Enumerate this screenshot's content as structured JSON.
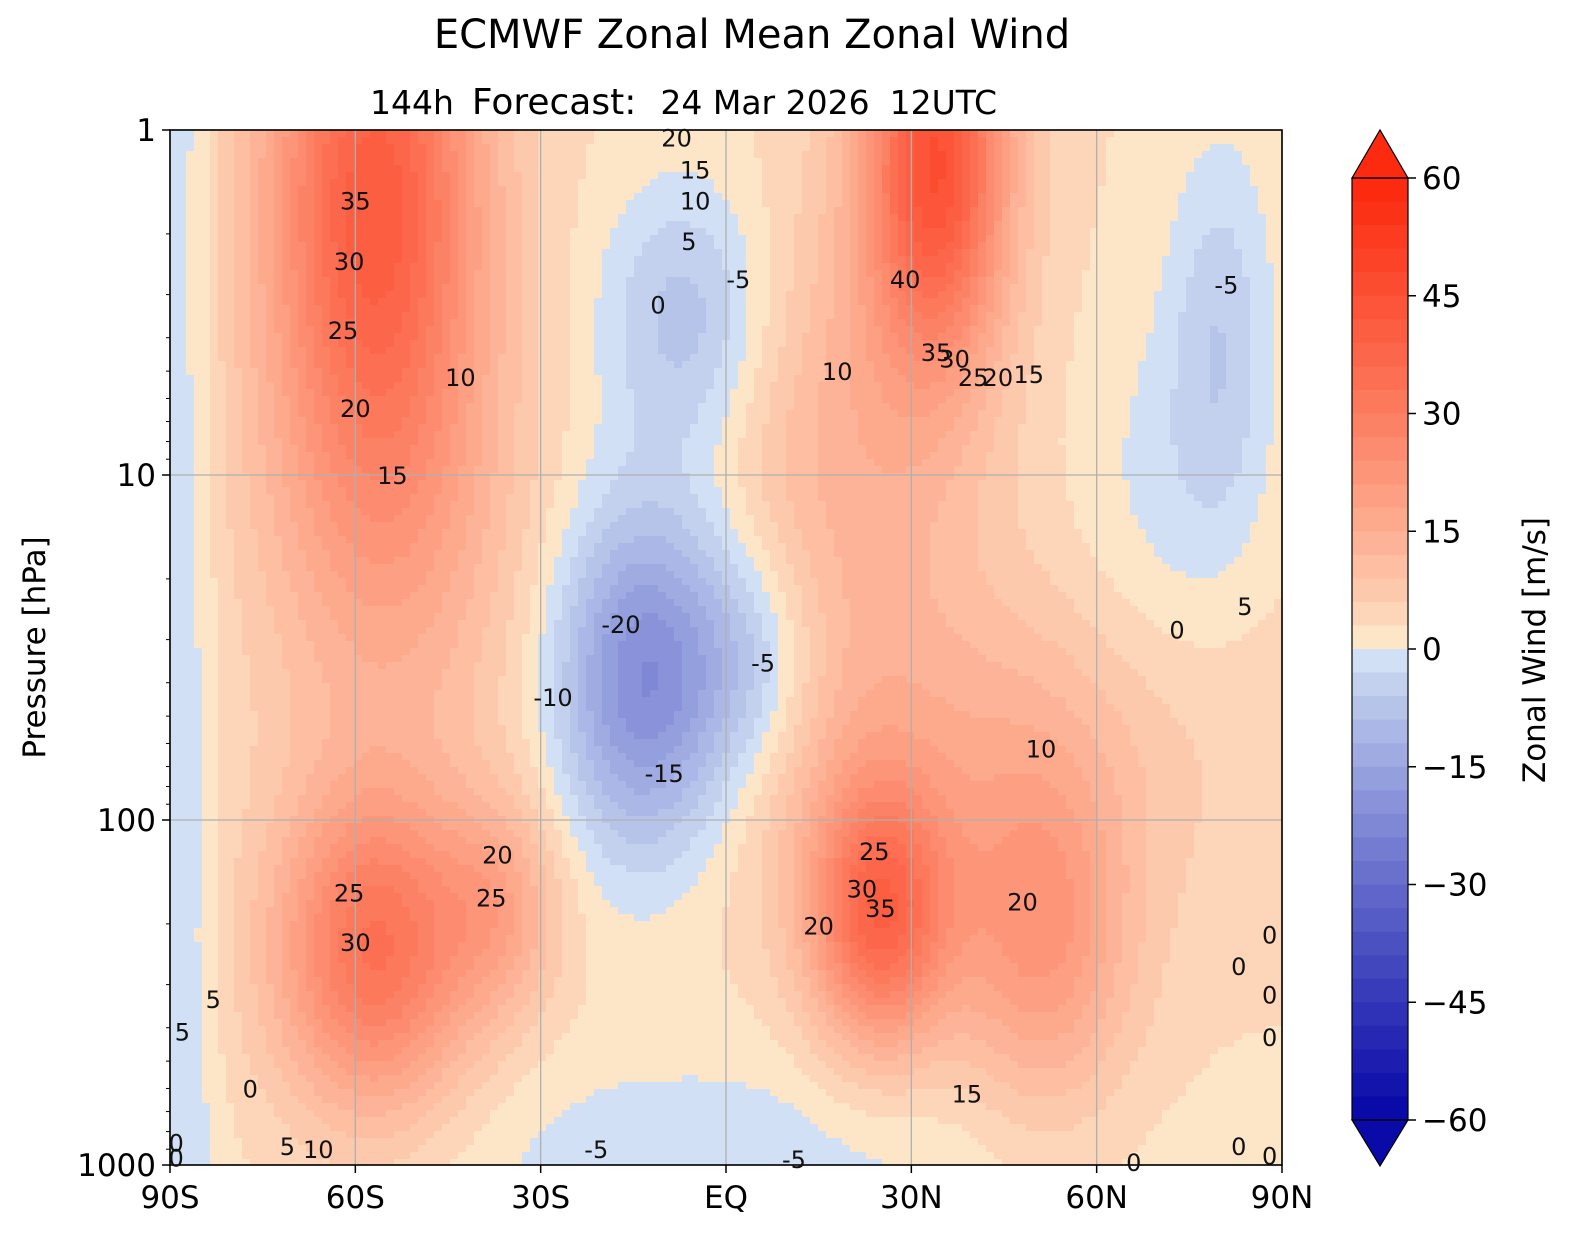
{
  "chart_data": {
    "type": "heatmap",
    "title": "ECMWF Zonal Mean Zonal Wind",
    "subtitle": {
      "lead": "144h",
      "label": "Forecast:",
      "date": "24 Mar 2026",
      "time": "12UTC"
    },
    "xlabel": "",
    "ylabel": "Pressure [hPa]",
    "x_ticks": [
      "90S",
      "60S",
      "30S",
      "EQ",
      "30N",
      "60N",
      "90N"
    ],
    "x_tick_values": [
      -90,
      -60,
      -30,
      0,
      30,
      60,
      90
    ],
    "xlim": [
      -90,
      90
    ],
    "y_ticks": [
      "1",
      "10",
      "100",
      "1000"
    ],
    "y_tick_values": [
      1,
      10,
      100,
      1000
    ],
    "ylim": [
      1000,
      1
    ],
    "y_scale": "log",
    "grid": true,
    "colorbar": {
      "label": "Zonal Wind [m/s]",
      "ticks": [
        "60",
        "45",
        "30",
        "15",
        "0",
        "−15",
        "−30",
        "−45",
        "−60"
      ],
      "tick_values": [
        60,
        45,
        30,
        15,
        0,
        -15,
        -30,
        -45,
        -60
      ],
      "range": [
        -60,
        60
      ],
      "step": 3,
      "extend": "both",
      "low_color": "#0a0aa8",
      "mid_low_color": "#e2f2fb",
      "mid_high_color": "#fde5c8",
      "high_color": "#fc2a0e"
    },
    "wind_maxima": [
      {
        "lat": -57,
        "p": 1.5,
        "value": 38
      },
      {
        "lat": 34,
        "p": 1.2,
        "value": 44
      },
      {
        "lat": -57,
        "p": 250,
        "value": 33
      },
      {
        "lat": 25,
        "p": 180,
        "value": 37
      },
      {
        "lat": 51,
        "p": 230,
        "value": 22
      },
      {
        "lat": -12,
        "p": 40,
        "value": -22
      },
      {
        "lat": -8,
        "p": 3.5,
        "value": -8
      },
      {
        "lat": 80,
        "p": 4,
        "value": -7
      }
    ],
    "contour_labels": [
      {
        "text": "35",
        "lat": -60,
        "p": 1.6
      },
      {
        "text": "30",
        "lat": -61,
        "p": 2.4
      },
      {
        "text": "25",
        "lat": -62,
        "p": 3.8
      },
      {
        "text": "20",
        "lat": -60,
        "p": 6.4
      },
      {
        "text": "15",
        "lat": -54,
        "p": 10
      },
      {
        "text": "10",
        "lat": -43,
        "p": 5.2
      },
      {
        "text": "20",
        "lat": -8,
        "p": 1.05
      },
      {
        "text": "15",
        "lat": -5,
        "p": 1.3
      },
      {
        "text": "10",
        "lat": -5,
        "p": 1.6
      },
      {
        "text": "5",
        "lat": -6,
        "p": 2.1
      },
      {
        "text": "0",
        "lat": -11,
        "p": 3.2
      },
      {
        "text": "-5",
        "lat": 2,
        "p": 2.7
      },
      {
        "text": "40",
        "lat": 29,
        "p": 2.7
      },
      {
        "text": "35",
        "lat": 34,
        "p": 4.4
      },
      {
        "text": "30",
        "lat": 37,
        "p": 4.6
      },
      {
        "text": "25",
        "lat": 40,
        "p": 5.2
      },
      {
        "text": "20",
        "lat": 44,
        "p": 5.2
      },
      {
        "text": "15",
        "lat": 49,
        "p": 5.1
      },
      {
        "text": "10",
        "lat": 18,
        "p": 5.0
      },
      {
        "text": "-5",
        "lat": 81,
        "p": 2.8
      },
      {
        "text": "0",
        "lat": 73,
        "p": 28
      },
      {
        "text": "5",
        "lat": 84,
        "p": 24
      },
      {
        "text": "-20",
        "lat": -17,
        "p": 27
      },
      {
        "text": "-10",
        "lat": -28,
        "p": 44
      },
      {
        "text": "-5",
        "lat": 6,
        "p": 35
      },
      {
        "text": "-15",
        "lat": -10,
        "p": 73
      },
      {
        "text": "10",
        "lat": 51,
        "p": 62
      },
      {
        "text": "20",
        "lat": -37,
        "p": 126
      },
      {
        "text": "25",
        "lat": -61,
        "p": 162
      },
      {
        "text": "25",
        "lat": -38,
        "p": 168
      },
      {
        "text": "30",
        "lat": -60,
        "p": 226
      },
      {
        "text": "25",
        "lat": 24,
        "p": 123
      },
      {
        "text": "30",
        "lat": 22,
        "p": 158
      },
      {
        "text": "35",
        "lat": 25,
        "p": 180
      },
      {
        "text": "20",
        "lat": 15,
        "p": 202
      },
      {
        "text": "20",
        "lat": 48,
        "p": 172
      },
      {
        "text": "15",
        "lat": 39,
        "p": 620
      },
      {
        "text": "0",
        "lat": 83,
        "p": 265
      },
      {
        "text": "0",
        "lat": 88,
        "p": 215
      },
      {
        "text": "0",
        "lat": 88,
        "p": 320
      },
      {
        "text": "0",
        "lat": 88,
        "p": 425
      },
      {
        "text": "5",
        "lat": -83,
        "p": 330
      },
      {
        "text": "5",
        "lat": -88,
        "p": 410
      },
      {
        "text": "0",
        "lat": -77,
        "p": 600
      },
      {
        "text": "0",
        "lat": -89,
        "p": 860
      },
      {
        "text": "0",
        "lat": -89,
        "p": 950
      },
      {
        "text": "5",
        "lat": -71,
        "p": 880
      },
      {
        "text": "10",
        "lat": -66,
        "p": 900
      },
      {
        "text": "-5",
        "lat": -21,
        "p": 900
      },
      {
        "text": "-5",
        "lat": 11,
        "p": 960
      },
      {
        "text": "0",
        "lat": 66,
        "p": 980
      },
      {
        "text": "0",
        "lat": 83,
        "p": 880
      },
      {
        "text": "0",
        "lat": 88,
        "p": 940
      }
    ]
  }
}
